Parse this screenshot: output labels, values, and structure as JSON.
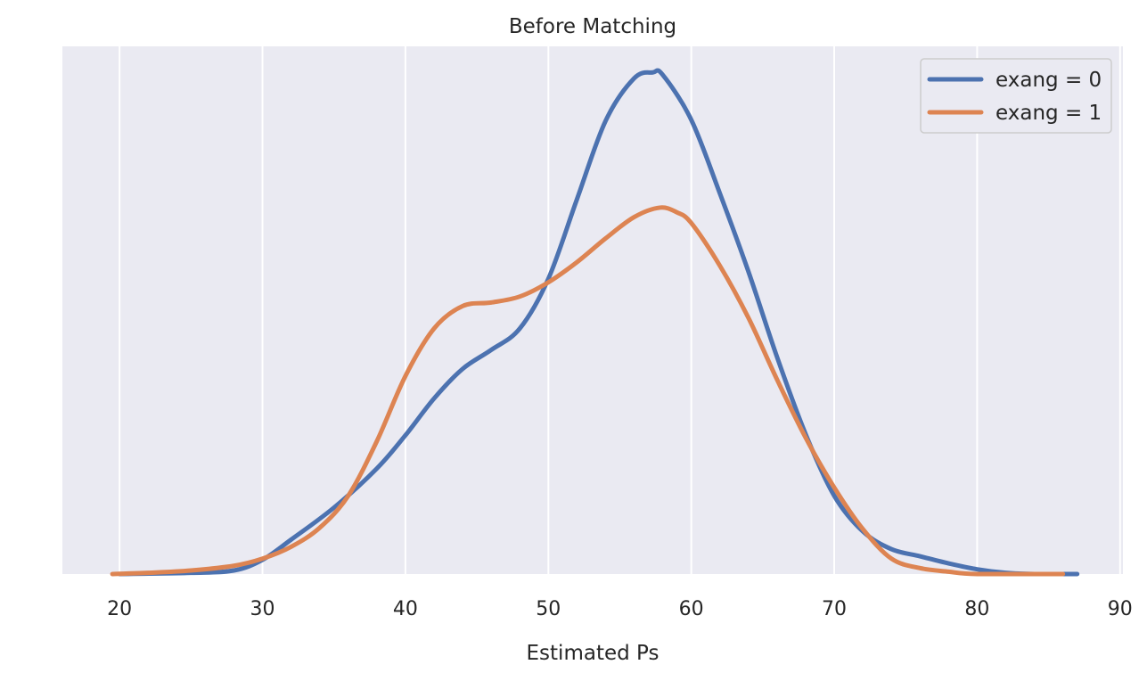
{
  "chart_data": {
    "type": "line",
    "title": "Before Matching",
    "xlabel": "Estimated Ps",
    "ylabel": "",
    "xlim": [
      16,
      90.2
    ],
    "ylim": [
      0,
      0.0445
    ],
    "x_ticks": [
      20,
      30,
      40,
      50,
      60,
      70,
      80,
      90
    ],
    "x_tick_labels": [
      "20",
      "30",
      "40",
      "50",
      "60",
      "70",
      "80",
      "90"
    ],
    "y_ticks_shown": false,
    "grid": "vertical",
    "legend_position": "top-right",
    "series": [
      {
        "name": "exang = 0",
        "color": "#4c72b0",
        "points": [
          [
            20,
            0.0
          ],
          [
            25,
            0.0001
          ],
          [
            28,
            0.0003
          ],
          [
            30,
            0.0012
          ],
          [
            32,
            0.0029
          ],
          [
            35,
            0.0056
          ],
          [
            38,
            0.0089
          ],
          [
            40,
            0.0117
          ],
          [
            42,
            0.0148
          ],
          [
            44,
            0.0173
          ],
          [
            46,
            0.0189
          ],
          [
            48,
            0.0207
          ],
          [
            50,
            0.0249
          ],
          [
            52,
            0.0316
          ],
          [
            54,
            0.0382
          ],
          [
            56,
            0.0418
          ],
          [
            57.3,
            0.0423
          ],
          [
            58,
            0.0421
          ],
          [
            60,
            0.0383
          ],
          [
            62,
            0.0321
          ],
          [
            64,
            0.0255
          ],
          [
            66,
            0.0183
          ],
          [
            68,
            0.0118
          ],
          [
            70,
            0.0066
          ],
          [
            72,
            0.0036
          ],
          [
            74,
            0.0021
          ],
          [
            76,
            0.0015
          ],
          [
            78,
            0.0009
          ],
          [
            80,
            0.0004
          ],
          [
            82,
            0.0001
          ],
          [
            84,
            0.0
          ],
          [
            87,
            0.0
          ]
        ]
      },
      {
        "name": "exang = 1",
        "color": "#dd8452",
        "points": [
          [
            19.5,
            0.0
          ],
          [
            22,
            0.0001
          ],
          [
            25,
            0.0003
          ],
          [
            28,
            0.0007
          ],
          [
            30,
            0.0013
          ],
          [
            32,
            0.0023
          ],
          [
            34,
            0.0039
          ],
          [
            36,
            0.0066
          ],
          [
            38,
            0.0112
          ],
          [
            40,
            0.0167
          ],
          [
            42,
            0.0207
          ],
          [
            44,
            0.0226
          ],
          [
            46,
            0.0229
          ],
          [
            48,
            0.0234
          ],
          [
            50,
            0.0246
          ],
          [
            52,
            0.0263
          ],
          [
            54,
            0.0283
          ],
          [
            56,
            0.0301
          ],
          [
            57.8,
            0.0309
          ],
          [
            59,
            0.0305
          ],
          [
            60,
            0.0296
          ],
          [
            62,
            0.026
          ],
          [
            64,
            0.0216
          ],
          [
            66,
            0.0164
          ],
          [
            68,
            0.0115
          ],
          [
            70,
            0.0073
          ],
          [
            72,
            0.0038
          ],
          [
            74,
            0.0013
          ],
          [
            76,
            0.0005
          ],
          [
            78,
            0.0002
          ],
          [
            80,
            0.0
          ],
          [
            86,
            0.0
          ]
        ]
      }
    ]
  }
}
